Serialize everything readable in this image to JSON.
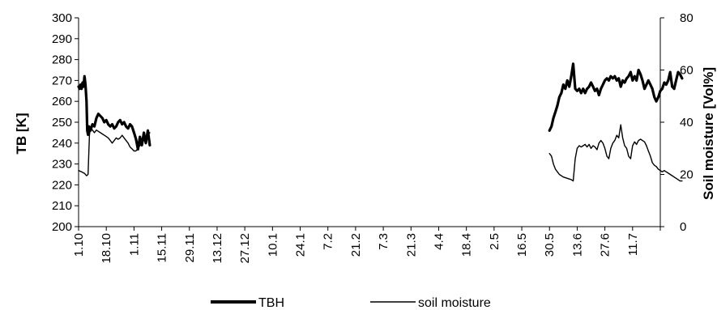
{
  "chart_data": {
    "type": "line",
    "title": "",
    "xlabel": "",
    "ylabel_left": "TB [K]",
    "ylabel_right": "Soil moisture [Vol%]",
    "ylim_left": [
      200,
      300
    ],
    "yticks_left": [
      200,
      210,
      220,
      230,
      240,
      250,
      260,
      270,
      280,
      290,
      300
    ],
    "ylim_right": [
      0,
      80
    ],
    "yticks_right": [
      0,
      20,
      40,
      60,
      80
    ],
    "grid": false,
    "legend_position": "bottom",
    "x_tick_labels": [
      "1.10",
      "18.10",
      "1.11",
      "15.11",
      "29.11",
      "13.12",
      "27.12",
      "10.1",
      "24.1",
      "7.2",
      "21.2",
      "7.3",
      "21.3",
      "4.4",
      "18.4",
      "2.5",
      "16.5",
      "30.5",
      "13.6",
      "27.6",
      "11.7"
    ],
    "series": [
      {
        "name": "TBH",
        "axis": "left",
        "color": "#000000",
        "segments": [
          [
            [
              0,
              267
            ],
            [
              0.5,
              266
            ],
            [
              1,
              268
            ],
            [
              1.5,
              266
            ],
            [
              2,
              269
            ],
            [
              2.5,
              267
            ],
            [
              3,
              272
            ],
            [
              3.5,
              268
            ],
            [
              4,
              260
            ],
            [
              4.4,
              246
            ],
            [
              4.8,
              244
            ],
            [
              5.3,
              248
            ],
            [
              6,
              246
            ],
            [
              7,
              249
            ],
            [
              8,
              248
            ],
            [
              9,
              252
            ],
            [
              10,
              254
            ],
            [
              11,
              253
            ],
            [
              12,
              252
            ],
            [
              13,
              250
            ],
            [
              14,
              251
            ],
            [
              15,
              249
            ],
            [
              16,
              248
            ],
            [
              17,
              249
            ],
            [
              18,
              247
            ],
            [
              19,
              248
            ],
            [
              20,
              250
            ],
            [
              21,
              251
            ],
            [
              22,
              249
            ],
            [
              23,
              250
            ],
            [
              24,
              248
            ],
            [
              25,
              247
            ],
            [
              26,
              249
            ],
            [
              27,
              248
            ],
            [
              28,
              245
            ],
            [
              29,
              242
            ],
            [
              30,
              237
            ],
            [
              31,
              243
            ],
            [
              32,
              239
            ],
            [
              33,
              245
            ],
            [
              34,
              240
            ],
            [
              35,
              246
            ],
            [
              36,
              239
            ]
          ],
          [
            [
              238,
              246
            ],
            [
              239,
              248
            ],
            [
              240,
              252
            ],
            [
              241,
              255
            ],
            [
              242,
              258
            ],
            [
              243,
              262
            ],
            [
              244,
              264
            ],
            [
              245,
              268
            ],
            [
              246,
              266
            ],
            [
              247,
              270
            ],
            [
              248,
              267
            ],
            [
              249,
              272
            ],
            [
              250,
              278
            ],
            [
              251,
              266
            ],
            [
              252,
              265
            ],
            [
              253,
              266
            ],
            [
              254,
              264
            ],
            [
              255,
              266
            ],
            [
              256,
              264
            ],
            [
              257,
              266
            ],
            [
              258,
              267
            ],
            [
              259,
              269
            ],
            [
              260,
              267
            ],
            [
              261,
              265
            ],
            [
              262,
              266
            ],
            [
              263,
              263
            ],
            [
              264,
              266
            ],
            [
              265,
              268
            ],
            [
              266,
              270
            ],
            [
              267,
              271
            ],
            [
              268,
              270
            ],
            [
              269,
              272
            ],
            [
              270,
              271
            ],
            [
              271,
              272
            ],
            [
              272,
              270
            ],
            [
              273,
              271
            ],
            [
              274,
              267
            ],
            [
              275,
              270
            ],
            [
              276,
              269
            ],
            [
              277,
              271
            ],
            [
              278,
              272
            ],
            [
              279,
              274
            ],
            [
              280,
              270
            ],
            [
              281,
              272
            ],
            [
              282,
              270
            ],
            [
              283,
              275
            ],
            [
              284,
              273
            ],
            [
              285,
              270
            ],
            [
              286,
              266
            ],
            [
              287,
              268
            ],
            [
              288,
              270
            ],
            [
              289,
              268
            ],
            [
              290,
              266
            ],
            [
              291,
              262
            ],
            [
              292,
              260
            ],
            [
              293,
              262
            ],
            [
              294,
              265
            ],
            [
              295,
              266
            ],
            [
              296,
              269
            ],
            [
              297,
              268
            ],
            [
              298,
              270
            ],
            [
              299,
              274
            ],
            [
              300,
              267
            ],
            [
              301,
              266
            ],
            [
              302,
              270
            ],
            [
              303,
              274
            ],
            [
              304,
              273
            ],
            [
              305,
              271
            ]
          ]
        ]
      },
      {
        "name": "soil moisture",
        "axis": "right",
        "color": "#000000",
        "segments": [
          [
            [
              0,
              21.5
            ],
            [
              2,
              20.8
            ],
            [
              3,
              20.4
            ],
            [
              4,
              19.5
            ],
            [
              4.8,
              20
            ],
            [
              5.5,
              35
            ],
            [
              6,
              38
            ],
            [
              7,
              37
            ],
            [
              8,
              36
            ],
            [
              9,
              37
            ],
            [
              10,
              36.5
            ],
            [
              11,
              36
            ],
            [
              12,
              35.5
            ],
            [
              13,
              35
            ],
            [
              14,
              34.5
            ],
            [
              15,
              34
            ],
            [
              16,
              33
            ],
            [
              17,
              32
            ],
            [
              18,
              33
            ],
            [
              19,
              34
            ],
            [
              20,
              33.5
            ],
            [
              21,
              34
            ],
            [
              22,
              35
            ],
            [
              23,
              34
            ],
            [
              24,
              33
            ],
            [
              25,
              32
            ],
            [
              26,
              30.5
            ],
            [
              27,
              29.8
            ],
            [
              28,
              29
            ],
            [
              29,
              29
            ],
            [
              30,
              30
            ],
            [
              31,
              31
            ],
            [
              32,
              32
            ],
            [
              33,
              33
            ],
            [
              34,
              34
            ],
            [
              35,
              35
            ],
            [
              36,
              36
            ]
          ],
          [
            [
              238,
              28
            ],
            [
              239,
              27
            ],
            [
              240,
              24
            ],
            [
              241,
              22
            ],
            [
              242,
              21
            ],
            [
              243,
              20
            ],
            [
              245,
              19
            ],
            [
              247,
              18.5
            ],
            [
              249,
              18
            ],
            [
              250,
              17.5
            ],
            [
              251,
              26
            ],
            [
              252,
              30
            ],
            [
              253,
              31
            ],
            [
              254,
              30.5
            ],
            [
              255,
              31
            ],
            [
              256,
              31.5
            ],
            [
              257,
              30.5
            ],
            [
              258,
              31.5
            ],
            [
              259,
              30
            ],
            [
              260,
              31
            ],
            [
              261,
              30.5
            ],
            [
              262,
              29.5
            ],
            [
              263,
              32
            ],
            [
              264,
              33
            ],
            [
              265,
              32
            ],
            [
              266,
              30
            ],
            [
              267,
              27
            ],
            [
              268,
              26
            ],
            [
              269,
              30
            ],
            [
              270,
              32
            ],
            [
              271,
              33
            ],
            [
              272,
              35
            ],
            [
              273,
              34
            ],
            [
              274,
              39
            ],
            [
              275,
              34
            ],
            [
              276,
              31
            ],
            [
              277,
              30
            ],
            [
              278,
              27
            ],
            [
              279,
              26
            ],
            [
              280,
              31
            ],
            [
              281,
              32.5
            ],
            [
              282,
              31.5
            ],
            [
              283,
              33
            ],
            [
              284,
              33.5
            ],
            [
              285,
              33
            ],
            [
              286,
              32.5
            ],
            [
              287,
              31
            ],
            [
              288,
              29
            ],
            [
              289,
              27
            ],
            [
              290,
              24.5
            ],
            [
              291,
              23.5
            ],
            [
              292,
              23
            ],
            [
              293,
              22
            ],
            [
              294,
              21.5
            ],
            [
              295,
              21
            ],
            [
              296,
              21.5
            ],
            [
              297,
              21
            ],
            [
              298,
              20.5
            ],
            [
              299,
              20
            ],
            [
              300,
              19.5
            ],
            [
              301,
              19
            ],
            [
              302,
              18.5
            ],
            [
              303,
              18
            ],
            [
              304,
              17.5
            ],
            [
              305,
              17.5
            ]
          ]
        ]
      }
    ]
  }
}
